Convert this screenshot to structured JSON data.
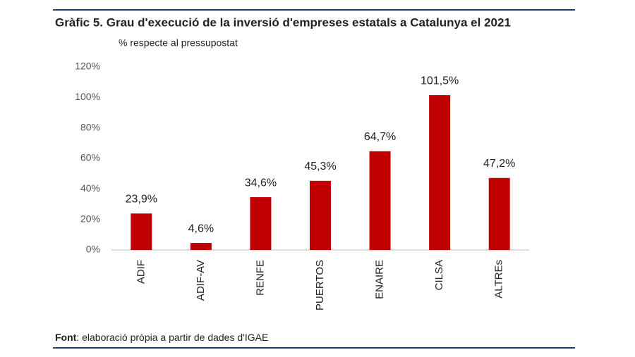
{
  "chart_data": {
    "type": "bar",
    "title": "Gràfic 5. Grau d'execució de la inversió d'empreses estatals a Catalunya el 2021",
    "subtitle": "% respecte al pressupostat",
    "categories": [
      "ADIF",
      "ADIF-AV",
      "RENFE",
      "PUERTOS",
      "ENAIRE",
      "CILSA",
      "ALTREs"
    ],
    "values": [
      23.9,
      4.6,
      34.6,
      45.3,
      64.7,
      101.5,
      47.2
    ],
    "value_labels": [
      "23,9%",
      "4,6%",
      "34,6%",
      "45,3%",
      "64,7%",
      "101,5%",
      "47,2%"
    ],
    "color": "#c00000",
    "ylim": [
      0,
      120
    ],
    "yticks": [
      {
        "value": 0,
        "label": "0%"
      },
      {
        "value": 20,
        "label": "20%"
      },
      {
        "value": 40,
        "label": "40%"
      },
      {
        "value": 60,
        "label": "60%"
      },
      {
        "value": 80,
        "label": "80%"
      },
      {
        "value": 100,
        "label": "100%"
      },
      {
        "value": 120,
        "label": "120%"
      }
    ],
    "grid": false,
    "source_label": "Font",
    "source_text": ": elaboració pròpia a partir de dades d'IGAE"
  }
}
